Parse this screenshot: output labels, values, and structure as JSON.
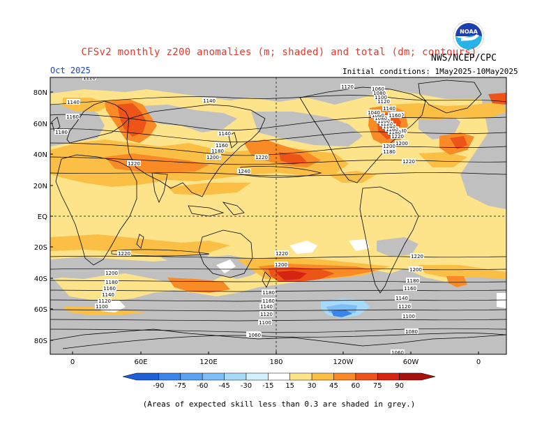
{
  "title": "CFSv2 monthly z200 anomalies (m; shaded) and total (dm; contours)",
  "month": "Oct 2025",
  "initial_conditions": "Initial conditions: 1May2025-10May2025",
  "agency": "NWS/NCEP/CPC",
  "logo_text": "NOAA",
  "footnote": "(Areas of expected skill less than 0.3 are shaded in grey.)",
  "lat_labels": [
    "80N",
    "60N",
    "40N",
    "20N",
    "EQ",
    "20S",
    "40S",
    "60S",
    "80S"
  ],
  "lon_labels": [
    "0",
    "60E",
    "120E",
    "180",
    "120W",
    "60W",
    "0"
  ],
  "contour_labels": [
    "1120",
    "1120",
    "1140",
    "1140",
    "1160",
    "1160",
    "1180",
    "1180",
    "1200",
    "1200",
    "1220",
    "1220",
    "1240",
    "1140",
    "1160",
    "1180",
    "1200",
    "1220",
    "1220",
    "1200",
    "1180",
    "1160",
    "1140",
    "1120",
    "1100",
    "1220",
    "1200",
    "1180",
    "1160",
    "1140",
    "1120",
    "1100",
    "1080",
    "1060",
    "1060",
    "1220",
    "1200",
    "1180",
    "1160",
    "1140",
    "1120",
    "1100",
    "1080",
    "1160",
    "1140",
    "1120",
    "1100",
    "1080",
    "1060",
    "1180",
    "1200",
    "1220",
    "1180",
    "1160",
    "1140",
    "1120",
    "1100",
    "1080",
    "1060",
    "1040"
  ],
  "colorbar": {
    "ticks": [
      "-90",
      "-75",
      "-60",
      "-45",
      "-30",
      "-15",
      "15",
      "30",
      "45",
      "60",
      "75",
      "90"
    ],
    "colors": [
      "#1f5fd8",
      "#3b84ea",
      "#5aa2f2",
      "#7dbef6",
      "#a6daf8",
      "#d2effb",
      "#ffffff",
      "#fde48a",
      "#fbbf45",
      "#f88b25",
      "#ec5418",
      "#d52512",
      "#a6120b"
    ],
    "grey_color": "#c0c0c0"
  }
}
